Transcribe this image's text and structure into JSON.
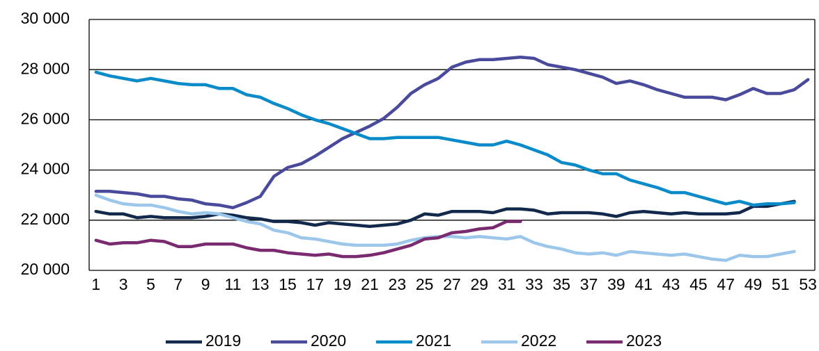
{
  "chart_data": {
    "type": "line",
    "categories": [
      1,
      null,
      3,
      null,
      5,
      null,
      7,
      null,
      9,
      null,
      11,
      null,
      13,
      null,
      15,
      null,
      17,
      null,
      19,
      null,
      21,
      null,
      23,
      null,
      25,
      null,
      27,
      null,
      29,
      null,
      31,
      null,
      33,
      null,
      35,
      null,
      37,
      null,
      39,
      null,
      41,
      null,
      43,
      null,
      45,
      null,
      47,
      null,
      49,
      null,
      51,
      null,
      53
    ],
    "ylim": [
      20000,
      30000
    ],
    "yticks": [
      {
        "value": 20000,
        "label": "20 000"
      },
      {
        "value": 22000,
        "label": "22 000"
      },
      {
        "value": 24000,
        "label": "24 000"
      },
      {
        "value": 26000,
        "label": "26 000"
      },
      {
        "value": 28000,
        "label": "28 000"
      },
      {
        "value": 30000,
        "label": "30 000"
      }
    ],
    "grid": true,
    "legend": "bottom",
    "series": [
      {
        "name": "2019",
        "color": "#13294b",
        "values": [
          22350,
          22250,
          22250,
          22100,
          22150,
          22100,
          22100,
          22100,
          22150,
          22250,
          22200,
          22100,
          22050,
          21950,
          21950,
          21900,
          21800,
          21900,
          21850,
          21800,
          21750,
          21800,
          21850,
          22000,
          22250,
          22200,
          22350,
          22350,
          22350,
          22300,
          22450,
          22450,
          22400,
          22250,
          22300,
          22300,
          22300,
          22250,
          22150,
          22300,
          22350,
          22300,
          22250,
          22300,
          22250,
          22250,
          22250,
          22300,
          22550,
          22550,
          22650,
          22750,
          null
        ]
      },
      {
        "name": "2020",
        "color": "#4a4a9c",
        "values": [
          23150,
          23150,
          23100,
          23050,
          22950,
          22950,
          22850,
          22800,
          22650,
          22600,
          22500,
          22700,
          22950,
          23750,
          24100,
          24250,
          24550,
          24900,
          25250,
          25500,
          25750,
          26050,
          26500,
          27050,
          27400,
          27650,
          28100,
          28300,
          28400,
          28400,
          28450,
          28500,
          28450,
          28200,
          28100,
          28000,
          27850,
          27700,
          27450,
          27550,
          27400,
          27200,
          27050,
          26900,
          26900,
          26900,
          26800,
          27000,
          27250,
          27050,
          27050,
          27200,
          27600
        ]
      },
      {
        "name": "2021",
        "color": "#0a8bc9",
        "values": [
          27900,
          27750,
          27650,
          27550,
          27650,
          27550,
          27450,
          27400,
          27400,
          27250,
          27250,
          27000,
          26900,
          26650,
          26450,
          26200,
          26000,
          25850,
          25650,
          25450,
          25250,
          25250,
          25300,
          25300,
          25300,
          25300,
          25200,
          25100,
          25000,
          25000,
          25150,
          25000,
          24800,
          24600,
          24300,
          24200,
          24000,
          23850,
          23850,
          23600,
          23450,
          23300,
          23100,
          23100,
          22950,
          22800,
          22650,
          22750,
          22600,
          22650,
          22650,
          22700,
          null
        ]
      },
      {
        "name": "2022",
        "color": "#9cc7ea",
        "values": [
          23000,
          22800,
          22650,
          22600,
          22600,
          22500,
          22350,
          22250,
          22300,
          22250,
          22100,
          21950,
          21850,
          21600,
          21500,
          21300,
          21250,
          21150,
          21050,
          21000,
          21000,
          21000,
          21050,
          21200,
          21300,
          21350,
          21350,
          21300,
          21350,
          21300,
          21250,
          21350,
          21100,
          20950,
          20850,
          20700,
          20650,
          20700,
          20600,
          20750,
          20700,
          20650,
          20600,
          20650,
          20550,
          20450,
          20400,
          20600,
          20550,
          20550,
          20650,
          20750,
          null
        ]
      },
      {
        "name": "2023",
        "color": "#7a2a6e",
        "values": [
          21200,
          21050,
          21100,
          21100,
          21200,
          21150,
          20950,
          20950,
          21050,
          21050,
          21050,
          20900,
          20800,
          20800,
          20700,
          20650,
          20600,
          20650,
          20550,
          20550,
          20600,
          20700,
          20850,
          21000,
          21250,
          21300,
          21500,
          21550,
          21650,
          21700,
          21950,
          21950,
          null,
          null,
          null,
          null,
          null,
          null,
          null,
          null,
          null,
          null,
          null,
          null,
          null,
          null,
          null,
          null,
          null,
          null,
          null,
          null,
          null
        ]
      }
    ]
  }
}
